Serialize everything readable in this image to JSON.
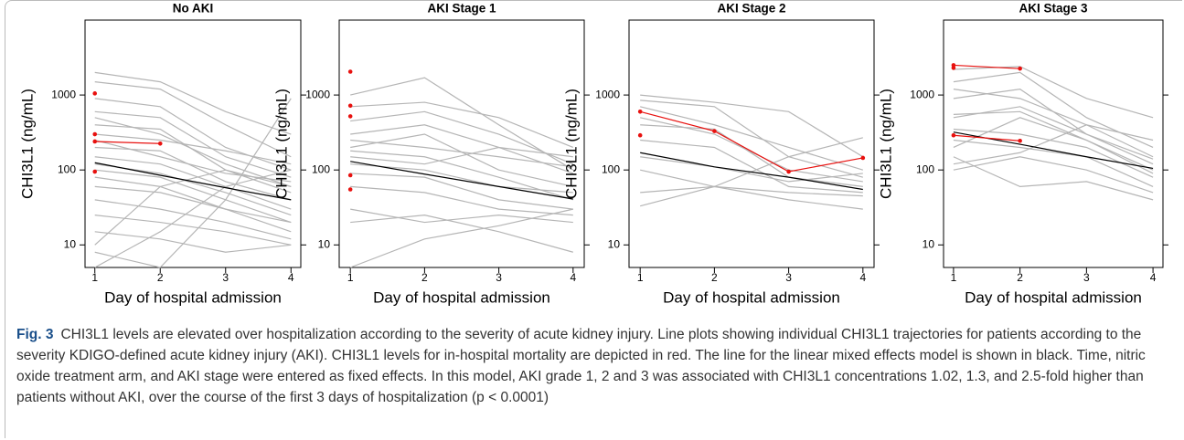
{
  "chart_data": [
    {
      "type": "line",
      "title": "No AKI",
      "x_label": "Day of hospital admission",
      "y_label": "CHI3L1 (ng/mL)",
      "x": [
        1,
        2,
        3,
        4
      ],
      "xlim": [
        0.85,
        4.15
      ],
      "xticks": [
        1,
        2,
        3,
        4
      ],
      "ylim": [
        5,
        10000
      ],
      "yticks": [
        10,
        100,
        1000
      ],
      "log_y": true,
      "series": [
        {
          "color": "#b5b5b5",
          "values": [
            2000,
            1500,
            600,
            300
          ]
        },
        {
          "color": "#b5b5b5",
          "values": [
            1500,
            1200,
            400,
            150
          ]
        },
        {
          "color": "#b5b5b5",
          "values": [
            900,
            700,
            200,
            100
          ]
        },
        {
          "color": "#b5b5b5",
          "values": [
            600,
            500,
            150,
            80
          ]
        },
        {
          "color": "#b5b5b5",
          "values": [
            500,
            300,
            120,
            60
          ]
        },
        {
          "color": "#b5b5b5",
          "values": [
            400,
            350,
            100,
            50
          ]
        },
        {
          "color": "#b5b5b5",
          "values": [
            300,
            250,
            180,
            120
          ]
        },
        {
          "color": "#b5b5b5",
          "values": [
            250,
            150,
            90,
            70
          ]
        },
        {
          "color": "#b5b5b5",
          "values": [
            200,
            180,
            70,
            40
          ]
        },
        {
          "color": "#b5b5b5",
          "values": [
            150,
            120,
            60,
            30
          ]
        },
        {
          "color": "#b5b5b5",
          "values": [
            120,
            90,
            50,
            25
          ]
        },
        {
          "color": "#b5b5b5",
          "values": [
            100,
            80,
            40,
            20
          ]
        },
        {
          "color": "#b5b5b5",
          "values": [
            80,
            60,
            100,
            60
          ]
        },
        {
          "color": "#b5b5b5",
          "values": [
            60,
            50,
            30,
            15
          ]
        },
        {
          "color": "#b5b5b5",
          "values": [
            40,
            30,
            20,
            12
          ]
        },
        {
          "color": "#b5b5b5",
          "values": [
            25,
            20,
            15,
            10
          ]
        },
        {
          "color": "#b5b5b5",
          "values": [
            15,
            12,
            8,
            10
          ]
        },
        {
          "color": "#b5b5b5",
          "values": [
            10,
            60,
            30,
            20
          ]
        },
        {
          "color": "#b5b5b5",
          "values": [
            8,
            5,
            40,
            900
          ]
        },
        {
          "color": "#b5b5b5",
          "values": [
            5,
            15,
            60,
            100
          ]
        },
        {
          "color": "#000000",
          "values": [
            125,
            85,
            58,
            40
          ]
        },
        {
          "color": "#e8110f",
          "marker": true,
          "values": [
            1050,
            null,
            null,
            null
          ]
        },
        {
          "color": "#e8110f",
          "marker": true,
          "values": [
            300,
            null,
            null,
            null
          ]
        },
        {
          "color": "#e8110f",
          "marker": true,
          "values": [
            240,
            225,
            null,
            null
          ]
        },
        {
          "color": "#e8110f",
          "marker": true,
          "values": [
            95,
            null,
            null,
            null
          ]
        }
      ]
    },
    {
      "type": "line",
      "title": "AKI Stage 1",
      "x_label": "Day of hospital admission",
      "y_label": "CHI3L1 (ng/mL)",
      "x": [
        1,
        2,
        3,
        4
      ],
      "xlim": [
        0.85,
        4.15
      ],
      "xticks": [
        1,
        2,
        3,
        4
      ],
      "ylim": [
        5,
        10000
      ],
      "yticks": [
        10,
        100,
        1000
      ],
      "log_y": true,
      "series": [
        {
          "color": "#b5b5b5",
          "values": [
            1000,
            1700,
            400,
            100
          ]
        },
        {
          "color": "#b5b5b5",
          "values": [
            700,
            800,
            500,
            200
          ]
        },
        {
          "color": "#b5b5b5",
          "values": [
            450,
            600,
            300,
            120
          ]
        },
        {
          "color": "#b5b5b5",
          "values": [
            300,
            400,
            200,
            90
          ]
        },
        {
          "color": "#b5b5b5",
          "values": [
            250,
            200,
            150,
            110
          ]
        },
        {
          "color": "#b5b5b5",
          "values": [
            200,
            300,
            100,
            60
          ]
        },
        {
          "color": "#b5b5b5",
          "values": [
            180,
            150,
            80,
            40
          ]
        },
        {
          "color": "#b5b5b5",
          "values": [
            150,
            120,
            200,
            150
          ]
        },
        {
          "color": "#b5b5b5",
          "values": [
            120,
            100,
            60,
            50
          ]
        },
        {
          "color": "#b5b5b5",
          "values": [
            90,
            80,
            40,
            30
          ]
        },
        {
          "color": "#b5b5b5",
          "values": [
            60,
            50,
            30,
            25
          ]
        },
        {
          "color": "#b5b5b5",
          "values": [
            30,
            20,
            25,
            20
          ]
        },
        {
          "color": "#b5b5b5",
          "values": [
            20,
            25,
            15,
            8
          ]
        },
        {
          "color": "#b5b5b5",
          "values": [
            5,
            12,
            18,
            30
          ]
        },
        {
          "color": "#000000",
          "values": [
            130,
            88,
            60,
            41
          ]
        },
        {
          "color": "#e8110f",
          "marker": true,
          "values": [
            2050,
            null,
            null,
            null
          ]
        },
        {
          "color": "#e8110f",
          "marker": true,
          "values": [
            720,
            null,
            null,
            null
          ]
        },
        {
          "color": "#e8110f",
          "marker": true,
          "values": [
            520,
            null,
            null,
            null
          ]
        },
        {
          "color": "#e8110f",
          "marker": true,
          "values": [
            85,
            null,
            null,
            null
          ]
        },
        {
          "color": "#e8110f",
          "marker": true,
          "values": [
            55,
            null,
            null,
            null
          ]
        }
      ]
    },
    {
      "type": "line",
      "title": "AKI Stage 2",
      "x_label": "Day of hospital admission",
      "y_label": "CHI3L1 (ng/mL)",
      "x": [
        1,
        2,
        3,
        4
      ],
      "xlim": [
        0.85,
        4.15
      ],
      "xticks": [
        1,
        2,
        3,
        4
      ],
      "ylim": [
        5,
        10000
      ],
      "yticks": [
        10,
        100,
        1000
      ],
      "log_y": true,
      "series": [
        {
          "color": "#b5b5b5",
          "values": [
            1000,
            800,
            600,
            150
          ]
        },
        {
          "color": "#b5b5b5",
          "values": [
            850,
            700,
            150,
            80
          ]
        },
        {
          "color": "#b5b5b5",
          "values": [
            700,
            400,
            200,
            100
          ]
        },
        {
          "color": "#b5b5b5",
          "values": [
            500,
            300,
            100,
            70
          ]
        },
        {
          "color": "#b5b5b5",
          "values": [
            400,
            350,
            80,
            60
          ]
        },
        {
          "color": "#b5b5b5",
          "values": [
            250,
            200,
            60,
            50
          ]
        },
        {
          "color": "#b5b5b5",
          "values": [
            150,
            110,
            70,
            90
          ]
        },
        {
          "color": "#b5b5b5",
          "values": [
            100,
            60,
            150,
            270
          ]
        },
        {
          "color": "#b5b5b5",
          "values": [
            50,
            60,
            40,
            30
          ]
        },
        {
          "color": "#b5b5b5",
          "values": [
            33,
            60,
            50,
            45
          ]
        },
        {
          "color": "#000000",
          "values": [
            170,
            110,
            80,
            55
          ]
        },
        {
          "color": "#e8110f",
          "marker": true,
          "values": [
            600,
            330,
            95,
            145
          ]
        },
        {
          "color": "#e8110f",
          "marker": true,
          "values": [
            290,
            null,
            null,
            null
          ]
        }
      ]
    },
    {
      "type": "line",
      "title": "AKI Stage 3",
      "x_label": "Day of hospital admission",
      "y_label": "CHI3L1 (ng/mL)",
      "x": [
        1,
        2,
        3,
        4
      ],
      "xlim": [
        0.85,
        4.15
      ],
      "xticks": [
        1,
        2,
        3,
        4
      ],
      "ylim": [
        5,
        10000
      ],
      "yticks": [
        10,
        100,
        1000
      ],
      "log_y": true,
      "series": [
        {
          "color": "#b5b5b5",
          "values": [
            2200,
            2400,
            900,
            500
          ]
        },
        {
          "color": "#b5b5b5",
          "values": [
            1500,
            2000,
            500,
            200
          ]
        },
        {
          "color": "#b5b5b5",
          "values": [
            1200,
            900,
            400,
            150
          ]
        },
        {
          "color": "#b5b5b5",
          "values": [
            900,
            1200,
            300,
            120
          ]
        },
        {
          "color": "#b5b5b5",
          "values": [
            550,
            600,
            250,
            100
          ]
        },
        {
          "color": "#b5b5b5",
          "values": [
            500,
            700,
            300,
            140
          ]
        },
        {
          "color": "#b5b5b5",
          "values": [
            350,
            300,
            200,
            80
          ]
        },
        {
          "color": "#b5b5b5",
          "values": [
            250,
            200,
            150,
            60
          ]
        },
        {
          "color": "#b5b5b5",
          "values": [
            200,
            500,
            250,
            90
          ]
        },
        {
          "color": "#b5b5b5",
          "values": [
            150,
            60,
            70,
            40
          ]
        },
        {
          "color": "#b5b5b5",
          "values": [
            100,
            150,
            100,
            50
          ]
        },
        {
          "color": "#b5b5b5",
          "values": [
            120,
            170,
            400,
            250
          ]
        },
        {
          "color": "#000000",
          "values": [
            320,
            220,
            150,
            105
          ]
        },
        {
          "color": "#e8110f",
          "marker": true,
          "values": [
            2500,
            2250,
            null,
            null
          ]
        },
        {
          "color": "#e8110f",
          "marker": true,
          "values": [
            2300,
            null,
            null,
            null
          ]
        },
        {
          "color": "#e8110f",
          "marker": true,
          "values": [
            290,
            245,
            null,
            null
          ]
        }
      ]
    }
  ],
  "caption": {
    "label": "Fig. 3",
    "text": "CHI3L1 levels are elevated over hospitalization according to the severity of acute kidney injury. Line plots showing individual CHI3L1 trajectories for patients according to the severity KDIGO-defined acute kidney injury (AKI). CHI3L1 levels for in-hospital mortality are depicted in red. The line for the linear mixed effects model is shown in black. Time, nitric oxide treatment arm, and AKI stage were entered as fixed effects. In this model, AKI grade 1, 2 and 3 was associated with CHI3L1 concentrations 1.02, 1.3, and 2.5-fold higher than patients without AKI, over the course of the first 3 days of hospitalization (p < 0.0001)"
  }
}
